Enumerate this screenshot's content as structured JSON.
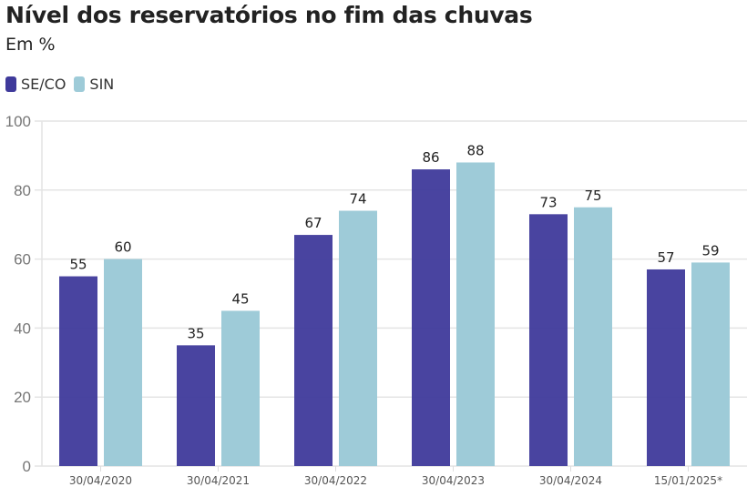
{
  "chart_data": {
    "type": "bar",
    "title": "Nível dos reservatórios no fim das chuvas",
    "subtitle": "Em %",
    "categories": [
      "30/04/2020",
      "30/04/2021",
      "30/04/2022",
      "30/04/2023",
      "30/04/2024",
      "15/01/2025*"
    ],
    "series": [
      {
        "name": "SE/CO",
        "color": "#3f3a9b",
        "values": [
          55,
          35,
          67,
          86,
          73,
          57
        ]
      },
      {
        "name": "SIN",
        "color": "#9ecbd8",
        "values": [
          60,
          45,
          74,
          88,
          75,
          59
        ]
      }
    ],
    "ylim": [
      0,
      100
    ],
    "yticks": [
      "0",
      "20",
      "40",
      "60",
      "80",
      "100"
    ],
    "grid": true,
    "legend": "top-left"
  }
}
